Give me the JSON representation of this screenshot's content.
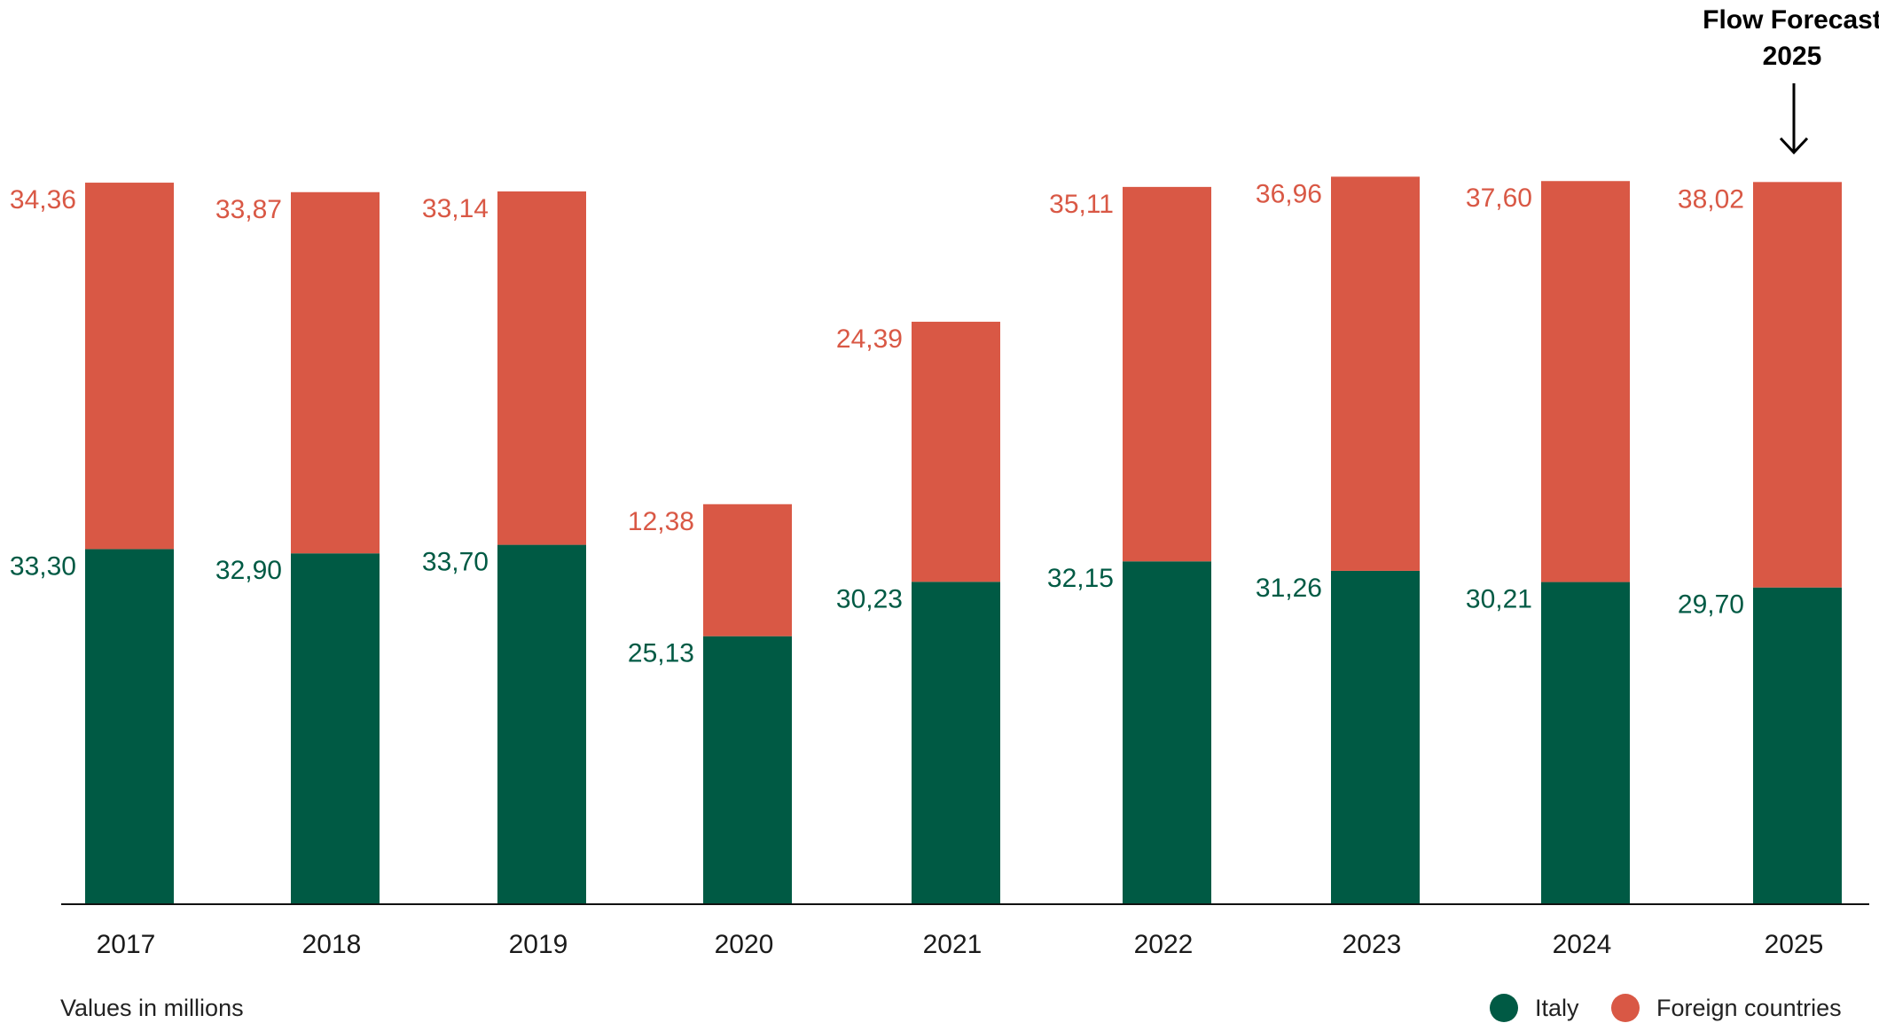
{
  "chart_data": {
    "type": "bar",
    "stacked": true,
    "categories": [
      "2017",
      "2018",
      "2019",
      "2020",
      "2021",
      "2022",
      "2023",
      "2024",
      "2025"
    ],
    "series": [
      {
        "name": "Italy",
        "color": "#005a44",
        "values": [
          33.3,
          32.9,
          33.7,
          25.13,
          30.23,
          32.15,
          31.26,
          30.21,
          29.7
        ],
        "labels": [
          "33,30",
          "32,90",
          "33,70",
          "25,13",
          "30,23",
          "32,15",
          "31,26",
          "30,21",
          "29,70"
        ]
      },
      {
        "name": "Foreign countries",
        "color": "#d95845",
        "values": [
          34.36,
          33.87,
          33.14,
          12.38,
          24.39,
          35.11,
          36.96,
          37.6,
          38.02
        ],
        "labels": [
          "34,36",
          "33,87",
          "33,14",
          "12,38",
          "24,39",
          "35,11",
          "36,96",
          "37,60",
          "38,02"
        ]
      }
    ],
    "note": "Values in millions",
    "annotation": {
      "line1": "Flow Forecast",
      "line2": "2025",
      "target": "2025"
    },
    "legend_placement": "bottom-right",
    "grid": false
  }
}
